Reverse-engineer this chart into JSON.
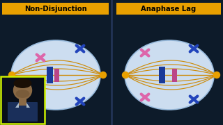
{
  "bg_color": "#0d1b2a",
  "panel_bg": "#ccddf0",
  "panel_edge": "#99bbdd",
  "title_bg": "#e8a000",
  "title_color": "#000000",
  "left_title": "Non-Disjunction",
  "right_title": "Anaphase Lag",
  "pole_color": "#e8a000",
  "chr_blue": "#2244bb",
  "chr_pink": "#dd66aa",
  "centromere_blue": "#1a3a99",
  "centromere_pink": "#bb4488",
  "fiber_color": "#cc8800",
  "sep_color": "#223355",
  "person_border": "#ccee00",
  "person_bg": "#0a0f1a",
  "person_skin": "#8b6a45",
  "person_shirt": "#1a2f5a",
  "figw": 3.2,
  "figh": 1.8,
  "dpi": 100
}
